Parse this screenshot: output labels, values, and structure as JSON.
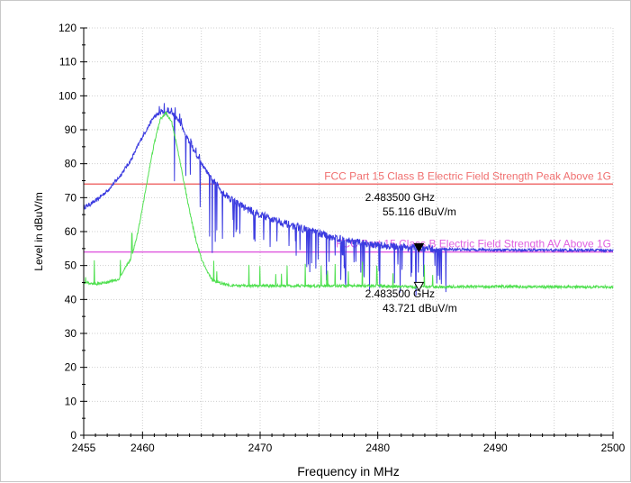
{
  "chart_data": {
    "type": "line",
    "title": "",
    "xlabel": "Frequency in MHz",
    "ylabel": "Level in dBuV/m",
    "xlim": [
      2455,
      2500
    ],
    "ylim": [
      0,
      120
    ],
    "x_ticks": [
      2455,
      2460,
      2470,
      2480,
      2490,
      2500
    ],
    "y_ticks": [
      0,
      10,
      20,
      30,
      40,
      50,
      60,
      70,
      80,
      90,
      100,
      110,
      120
    ],
    "grid": true,
    "limit_lines": [
      {
        "name": "FCC Part 15 Class B Electric Field Strength Peak Above 1G",
        "value": 74,
        "color": "#f07070"
      },
      {
        "name": "FCC Part 15 Class B Electric Field Strength AV Above 1G",
        "value": 54,
        "color": "#e060e0"
      }
    ],
    "series": [
      {
        "color": "#3b3be0",
        "x": [
          2455,
          2456,
          2457,
          2458,
          2459,
          2460,
          2460.5,
          2461,
          2461.5,
          2462,
          2462.5,
          2463,
          2463.5,
          2464,
          2465,
          2466,
          2467,
          2468,
          2469,
          2470,
          2472,
          2474,
          2476,
          2478,
          2480,
          2482,
          2483.5,
          2485,
          2490,
          2495,
          2500
        ],
        "y": [
          67,
          69,
          72,
          76,
          81,
          88,
          91,
          94,
          95,
          95,
          95,
          93,
          90,
          86,
          80,
          75,
          71,
          68.5,
          66.5,
          65,
          62.5,
          60.5,
          58.5,
          57,
          56,
          55.5,
          55.1,
          54.8,
          54.6,
          54.5,
          54.5
        ]
      },
      {
        "color": "#50e050",
        "x": [
          2455,
          2456,
          2457,
          2458,
          2459,
          2459.5,
          2460,
          2460.5,
          2461,
          2461.5,
          2462,
          2462.5,
          2463,
          2463.5,
          2464,
          2464.5,
          2465,
          2465.5,
          2466,
          2467,
          2468,
          2470,
          2475,
          2480,
          2483.5,
          2490,
          2495,
          2500
        ],
        "y": [
          45,
          44.5,
          45,
          46,
          52,
          58,
          67,
          77,
          86,
          93,
          95,
          92,
          84,
          75,
          66,
          58,
          52,
          48,
          45.5,
          44.5,
          44,
          44,
          44,
          44,
          43.7,
          43.8,
          43.7,
          43.7
        ]
      }
    ],
    "markers": [
      {
        "x": 2483.5,
        "y": 55.116,
        "freq_text": "2.483500 GHz",
        "level_text": "55.116 dBuV/m",
        "filled": true
      },
      {
        "x": 2483.5,
        "y": 43.721,
        "freq_text": "2.483500 GHz",
        "level_text": "43.721 dBuV/m",
        "filled": false
      }
    ]
  }
}
